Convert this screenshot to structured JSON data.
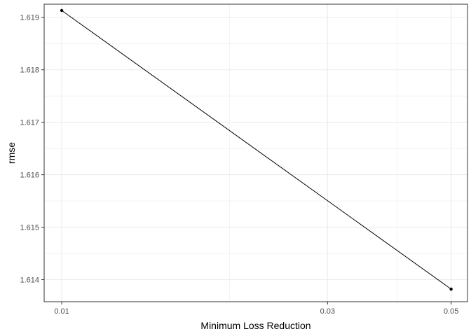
{
  "chart_data": {
    "type": "line",
    "title": "",
    "xlabel": "Minimum Loss Reduction",
    "ylabel": "rmse",
    "x_scale": "log10",
    "xlim": [
      0.0093,
      0.0535
    ],
    "ylim": [
      1.61358,
      1.61925
    ],
    "x_ticks": [
      {
        "value": 0.01,
        "label": "0.01"
      },
      {
        "value": 0.03,
        "label": "0.03"
      },
      {
        "value": 0.05,
        "label": "0.05"
      }
    ],
    "x_minor_ticks": [
      0.02,
      0.04
    ],
    "y_ticks": [
      {
        "value": 1.614,
        "label": "1.614"
      },
      {
        "value": 1.615,
        "label": "1.615"
      },
      {
        "value": 1.616,
        "label": "1.616"
      },
      {
        "value": 1.617,
        "label": "1.617"
      },
      {
        "value": 1.618,
        "label": "1.618"
      },
      {
        "value": 1.619,
        "label": "1.619"
      }
    ],
    "grid": true,
    "legend": "none",
    "series": [
      {
        "color": "#000000",
        "points": [
          {
            "x": 0.01,
            "y": 1.61913
          },
          {
            "x": 0.05,
            "y": 1.61382
          }
        ]
      }
    ]
  }
}
